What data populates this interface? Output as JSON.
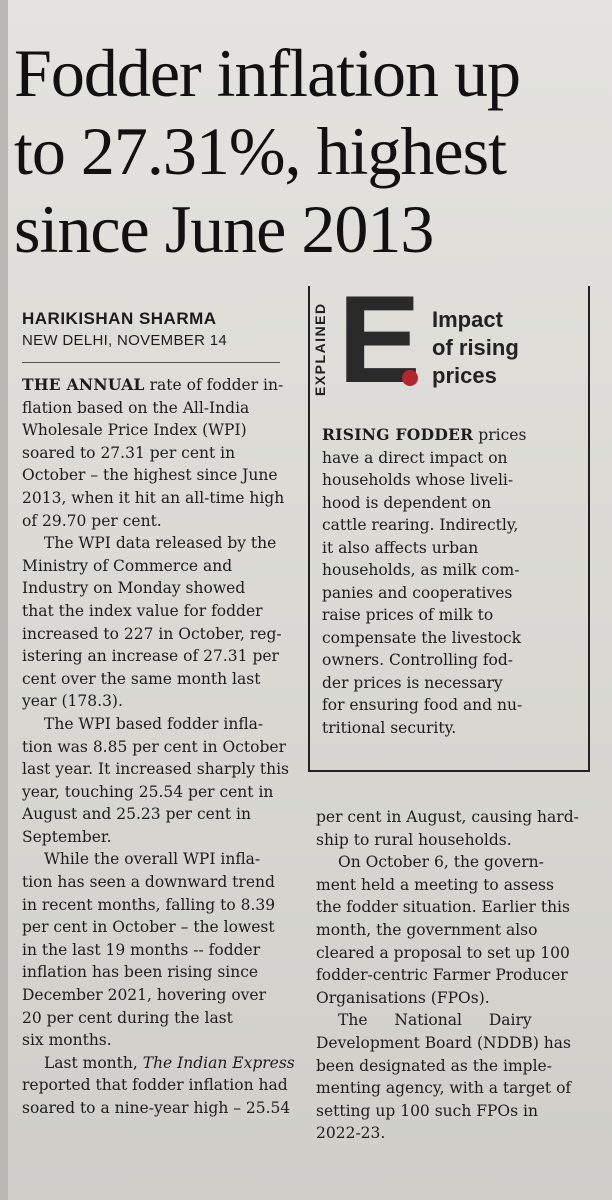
{
  "headline": {
    "lines": [
      "Fodder inflation up",
      "to 27.31%, highest",
      "since June 2013"
    ]
  },
  "byline": {
    "author": "HARIKISHAN SHARMA",
    "dateline": "NEW DELHI, NOVEMBER 14"
  },
  "explained_box": {
    "tag": "EXPLAINED",
    "letter": "E",
    "title_lines": [
      "Impact",
      "of rising",
      "prices"
    ],
    "lead": "RISING FODDER",
    "body_lines": [
      "RISING FODDER prices",
      "have a direct impact on",
      "households whose liveli-",
      "hood is dependent on",
      "cattle rearing. Indirectly,",
      "it also affects urban",
      "households, as milk com-",
      "panies and cooperatives",
      "raise prices of milk to",
      "compensate the livestock",
      "owners. Controlling fod-",
      "der prices is necessary",
      "for ensuring food and nu-",
      "tritional security."
    ]
  },
  "article": {
    "lead_caps": "THE ANNUAL",
    "left_column": [
      {
        "lines": [
          "THE ANNUAL rate of fodder in-",
          "flation based on the All-India",
          "Wholesale Price Index (WPI)",
          "soared to 27.31 per cent in",
          "October – the highest since June",
          "2013, when it hit an all-time high",
          "of 29.70 per cent."
        ]
      },
      {
        "lines": [
          "The WPI data released by the",
          "Ministry of Commerce and",
          "Industry on Monday showed",
          "that the index value for fodder",
          "increased to 227 in October, reg-",
          "istering an increase of 27.31 per",
          "cent over the same month last",
          "year (178.3)."
        ]
      },
      {
        "lines": [
          "The WPI based fodder infla-",
          "tion was 8.85 per cent in October",
          "last year. It increased sharply this",
          "year, touching 25.54 per cent in",
          "August and 25.23 per cent in",
          "September."
        ]
      },
      {
        "lines": [
          "While the overall WPI infla-",
          "tion has seen a downward trend",
          "in recent months, falling to 8.39",
          "per cent in October – the lowest",
          "in the last 19 months -- fodder",
          "inflation has been rising since",
          "December 2021, hovering over",
          "20 per cent during the last",
          "six months."
        ]
      },
      {
        "lines_pre": "Last month, ",
        "italic": "The Indian Express",
        "lines": [
          "reported that fodder inflation had",
          "soared to a nine-year high – 25.54"
        ]
      }
    ],
    "right_column": [
      {
        "lines": [
          "per cent in August, causing hard-",
          "ship to rural households."
        ]
      },
      {
        "lines": [
          "On October 6, the govern-",
          "ment held a meeting to assess",
          "the fodder situation. Earlier this",
          "month, the government also",
          "cleared a proposal to set up 100",
          "fodder-centric Farmer Producer",
          "Organisations (FPOs)."
        ]
      },
      {
        "lines": [
          "The National Dairy",
          "Development Board (NDDB) has",
          "been designated as the imple-",
          "menting agency, with a target of",
          "setting up 100 such FPOs in",
          "2022-23."
        ]
      }
    ]
  },
  "colors": {
    "accent_dot": "#b3262b",
    "ink": "#1c1c1c"
  }
}
